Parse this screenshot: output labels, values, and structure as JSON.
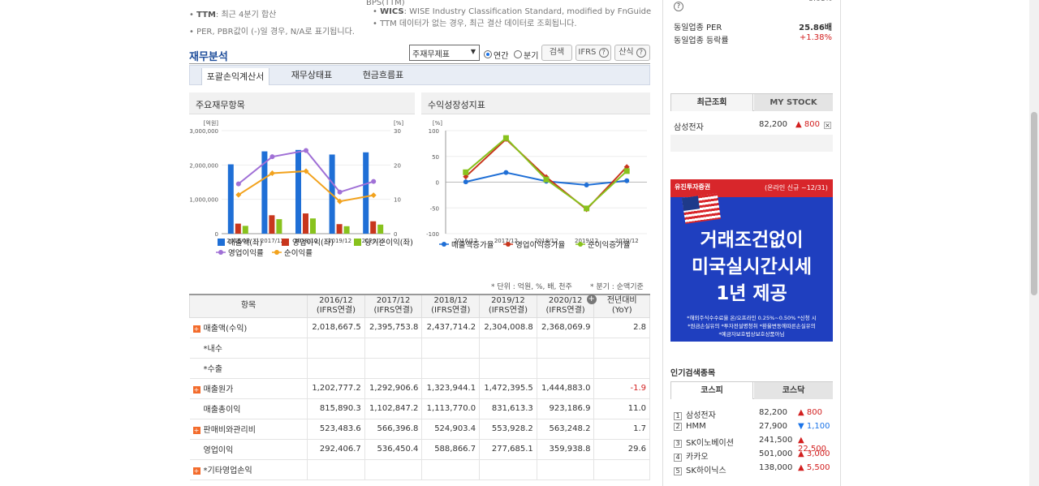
{
  "notes": {
    "ttm_label": "TTM",
    "ttm_text": ": 최근 4분기 합산",
    "per_note": "PER, PBR값이 (-)일 경우, N/A로 표기됩니다.",
    "bps": "BPS(TTM)",
    "wics_label": "WICS",
    "wics_text": ": WISE Industry Classification Standard, modified by FnGuide",
    "ttm_note": "TTM 데이터가 없는 경우, 최근 결산 데이터로 조회됩니다."
  },
  "section": {
    "title": "재무분석",
    "select_value": "주재무제표",
    "radio_annual": "연간",
    "radio_quarter": "분기",
    "search_btn": "검색",
    "ifrs_btn": "IFRS",
    "formula_btn": "산식"
  },
  "tabs": [
    "포괄손익계산서",
    "재무상태표",
    "현금흐름표"
  ],
  "panels": {
    "left_title": "주요재무항목",
    "right_title": "수익성장성지표"
  },
  "chart_data": [
    {
      "type": "bar",
      "title": "주요재무항목",
      "categories": [
        "2016/12",
        "2017/12",
        "2018/12",
        "2019/12",
        "2020/12"
      ],
      "left_axis_label": "[억원]",
      "right_axis_label": "[%]",
      "left_ticks": [
        "3,000,000",
        "2,000,000",
        "1,000,000",
        "0"
      ],
      "right_ticks": [
        "30",
        "20",
        "10",
        "0"
      ],
      "ylim_left": [
        0,
        3000000
      ],
      "ylim_right": [
        0,
        30
      ],
      "series": [
        {
          "name": "매출액(좌)",
          "kind": "bar",
          "color": "#1f6fd6",
          "values": [
            2018667.5,
            2395753.8,
            2437714.2,
            2304008.8,
            2368069.9
          ]
        },
        {
          "name": "영업이익(좌)",
          "kind": "bar",
          "color": "#c8361d",
          "values": [
            292406.7,
            536450.4,
            588866.7,
            277685.1,
            359938.8
          ]
        },
        {
          "name": "당기순이익(좌)",
          "kind": "bar",
          "color": "#88c21d",
          "values": [
            227261,
            421867,
            443449,
            217389,
            264078
          ]
        },
        {
          "name": "영업이익률",
          "kind": "line",
          "axis": "right",
          "color": "#a070d6",
          "values": [
            14.5,
            22.4,
            24.2,
            12.1,
            15.2
          ]
        },
        {
          "name": "순이익률",
          "kind": "line",
          "axis": "right",
          "color": "#f2a21d",
          "values": [
            11.3,
            17.6,
            18.2,
            9.4,
            11.2
          ]
        }
      ]
    },
    {
      "type": "line",
      "title": "수익성장성지표",
      "categories": [
        "2016/12",
        "2017/12",
        "2018/12",
        "2019/12",
        "2020/12"
      ],
      "y_axis_label": "[%]",
      "y_ticks": [
        "100",
        "50",
        "0",
        "-50",
        "-100"
      ],
      "ylim": [
        -100,
        100
      ],
      "series": [
        {
          "name": "매출액증가율",
          "color": "#1f6fd6",
          "values": [
            0.6,
            18.7,
            1.8,
            -5.5,
            2.8
          ]
        },
        {
          "name": "영업이익증가율",
          "color": "#c8361d",
          "values": [
            10.7,
            83.5,
            9.8,
            -52.8,
            29.6
          ]
        },
        {
          "name": "순이익증가율",
          "color": "#88c21d",
          "values": [
            19.2,
            85.6,
            5.1,
            -51.0,
            21.5
          ]
        }
      ]
    }
  ],
  "unit_note": "* 단위 : 억원, %, 배, 천주",
  "period_note": "* 분기 : 순액기준",
  "table": {
    "headers": [
      "항목",
      "2016/12\n(IFRS연결)",
      "2017/12\n(IFRS연결)",
      "2018/12\n(IFRS연결)",
      "2019/12\n(IFRS연결)",
      "2020/12\n(IFRS연결)",
      "전년대비\n(YoY)"
    ],
    "rows": [
      {
        "label": "매출액(수익)",
        "plus": true,
        "values": [
          "2,018,667.5",
          "2,395,753.8",
          "2,437,714.2",
          "2,304,008.8",
          "2,368,069.9",
          "2.8"
        ]
      },
      {
        "label": "*내수",
        "sub": true,
        "values": [
          "",
          "",
          "",
          "",
          "",
          ""
        ]
      },
      {
        "label": "*수출",
        "sub": true,
        "values": [
          "",
          "",
          "",
          "",
          "",
          ""
        ]
      },
      {
        "label": "매출원가",
        "plus": true,
        "values": [
          "1,202,777.2",
          "1,292,906.6",
          "1,323,944.1",
          "1,472,395.5",
          "1,444,883.0",
          "-1.9"
        ],
        "neg": true
      },
      {
        "label": "매출총이익",
        "sub": true,
        "values": [
          "815,890.3",
          "1,102,847.2",
          "1,113,770.0",
          "831,613.3",
          "923,186.9",
          "11.0"
        ]
      },
      {
        "label": "판매비와관리비",
        "plus": true,
        "values": [
          "523,483.6",
          "566,396.8",
          "524,903.4",
          "553,928.2",
          "563,248.2",
          "1.7"
        ]
      },
      {
        "label": "영업이익",
        "sub": true,
        "values": [
          "292,406.7",
          "536,450.4",
          "588,866.7",
          "277,685.1",
          "359,938.8",
          "29.6"
        ]
      },
      {
        "label": "*기타영업손익",
        "plus": true,
        "values": [
          "",
          "",
          "",
          "",
          "",
          ""
        ]
      }
    ]
  },
  "sidebar": {
    "per_label": "동일업종 PER",
    "per_value": "25.86배",
    "change_label": "동일업종 등락률",
    "change_value": "+1.38%",
    "recent_tab": "최근조회",
    "mystock_tab": "MY STOCK",
    "recent_item": {
      "name": "삼성전자",
      "price": "82,200",
      "change": "▲ 800"
    },
    "ad": {
      "brand": "유진투자증권",
      "promo": "(온라인 신규 ~12/31)",
      "line1": "거래조건없이",
      "line2": "미국실시간시세",
      "line3": "1년 제공",
      "fine1": "*해외주식수수료율 온/오프라인 0.25%~0.50% *신청 시",
      "fine2": "*원금손실유의 *투자전설명청취 *환율변동에따른손실유의",
      "fine3": "*예금자보호법상보호상품아님"
    },
    "popular_title": "인기검색종목",
    "popular_tabs": [
      "코스피",
      "코스닥"
    ],
    "popular": [
      {
        "rank": "1",
        "name": "삼성전자",
        "price": "82,200",
        "change": "▲ 800",
        "dir": "up"
      },
      {
        "rank": "2",
        "name": "HMM",
        "price": "27,900",
        "change": "▼ 1,100",
        "dir": "down"
      },
      {
        "rank": "3",
        "name": "SK이노베이션",
        "price": "241,500",
        "change": "▲ 22,500",
        "dir": "up"
      },
      {
        "rank": "4",
        "name": "카카오",
        "price": "501,000",
        "change": "▲ 3,000",
        "dir": "up"
      },
      {
        "rank": "5",
        "name": "SK하이닉스",
        "price": "138,000",
        "change": "▲ 5,500",
        "dir": "up"
      }
    ]
  }
}
